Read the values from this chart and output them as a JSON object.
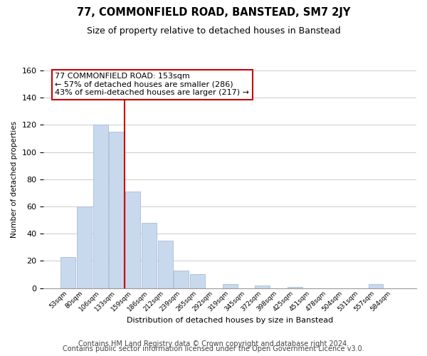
{
  "title": "77, COMMONFIELD ROAD, BANSTEAD, SM7 2JY",
  "subtitle": "Size of property relative to detached houses in Banstead",
  "xlabel": "Distribution of detached houses by size in Banstead",
  "ylabel": "Number of detached properties",
  "bar_labels": [
    "53sqm",
    "80sqm",
    "106sqm",
    "133sqm",
    "159sqm",
    "186sqm",
    "212sqm",
    "239sqm",
    "265sqm",
    "292sqm",
    "319sqm",
    "345sqm",
    "372sqm",
    "398sqm",
    "425sqm",
    "451sqm",
    "478sqm",
    "504sqm",
    "531sqm",
    "557sqm",
    "584sqm"
  ],
  "bar_values": [
    23,
    60,
    120,
    115,
    71,
    48,
    35,
    13,
    10,
    0,
    3,
    0,
    2,
    0,
    1,
    0,
    0,
    0,
    0,
    3,
    0
  ],
  "bar_color": "#c8d9ee",
  "bar_edge_color": "#aabcd8",
  "vline_index": 4,
  "vline_color": "#cc0000",
  "ylim": [
    0,
    160
  ],
  "annotation_line1": "77 COMMONFIELD ROAD: 153sqm",
  "annotation_line2": "← 57% of detached houses are smaller (286)",
  "annotation_line3": "43% of semi-detached houses are larger (217) →",
  "footer_line1": "Contains HM Land Registry data © Crown copyright and database right 2024.",
  "footer_line2": "Contains public sector information licensed under the Open Government Licence v3.0.",
  "background_color": "#ffffff",
  "grid_color": "#cccccc",
  "title_fontsize": 10.5,
  "subtitle_fontsize": 9,
  "annotation_fontsize": 8,
  "footer_fontsize": 7
}
